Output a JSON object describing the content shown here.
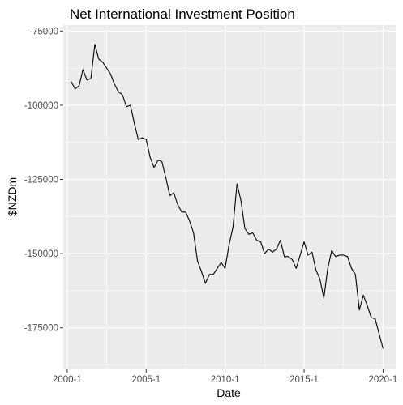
{
  "chart_data": {
    "type": "line",
    "title": "Net International Investment Position",
    "xlabel": "Date",
    "ylabel": "$NZDm",
    "x_ticks": [
      "2000-1",
      "2005-1",
      "2010-1",
      "2015-1",
      "2020-1"
    ],
    "y_ticks": [
      "-75000",
      "-100000",
      "-125000",
      "-150000",
      "-175000"
    ],
    "x_range": [
      1999.75,
      2020.8
    ],
    "ylim": [
      -189000,
      -73000
    ],
    "grid": true,
    "background": "#ebebeb",
    "line_color": "#000000",
    "series": [
      {
        "x": [
          2000.25,
          2000.5,
          2000.75,
          2001.0,
          2001.25,
          2001.5,
          2001.75,
          2002.0,
          2002.25,
          2002.5,
          2002.75,
          2003.0,
          2003.25,
          2003.5,
          2003.75,
          2004.0,
          2004.25,
          2004.5,
          2004.75,
          2005.0,
          2005.25,
          2005.5,
          2005.75,
          2006.0,
          2006.25,
          2006.5,
          2006.75,
          2007.0,
          2007.25,
          2007.5,
          2007.75,
          2008.0,
          2008.25,
          2008.5,
          2008.75,
          2009.0,
          2009.25,
          2009.5,
          2009.75,
          2010.0,
          2010.25,
          2010.5,
          2010.75,
          2011.0,
          2011.25,
          2011.5,
          2011.75,
          2012.0,
          2012.25,
          2012.5,
          2012.75,
          2013.0,
          2013.25,
          2013.5,
          2013.75,
          2014.0,
          2014.25,
          2014.5,
          2014.75,
          2015.0,
          2015.25,
          2015.5,
          2015.75,
          2016.0,
          2016.25,
          2016.5,
          2016.75,
          2017.0,
          2017.25,
          2017.5,
          2017.75,
          2018.0,
          2018.25,
          2018.5,
          2018.75,
          2019.0,
          2019.25,
          2019.5,
          2019.75,
          2020.0
        ],
        "y": [
          -92000,
          -94500,
          -93500,
          -88000,
          -91500,
          -91000,
          -79500,
          -84500,
          -85500,
          -87500,
          -89500,
          -93000,
          -95500,
          -96500,
          -100500,
          -100000,
          -106000,
          -111500,
          -111000,
          -111500,
          -117500,
          -121000,
          -118500,
          -119000,
          -124500,
          -130500,
          -129500,
          -133500,
          -136000,
          -136000,
          -139000,
          -143000,
          -152500,
          -156000,
          -160000,
          -157000,
          -157000,
          -155000,
          -153000,
          -155000,
          -147000,
          -141000,
          -126500,
          -132000,
          -141500,
          -143500,
          -143000,
          -145500,
          -146000,
          -150000,
          -148500,
          -149500,
          -148500,
          -145500,
          -151000,
          -151000,
          -152000,
          -155000,
          -150500,
          -146000,
          -150500,
          -149500,
          -155500,
          -158500,
          -165000,
          -155000,
          -149000,
          -151000,
          -150500,
          -150500,
          -151000,
          -155000,
          -157000,
          -169000,
          -164000,
          -167500,
          -171500,
          -172000,
          -177000,
          -182000
        ]
      }
    ]
  }
}
